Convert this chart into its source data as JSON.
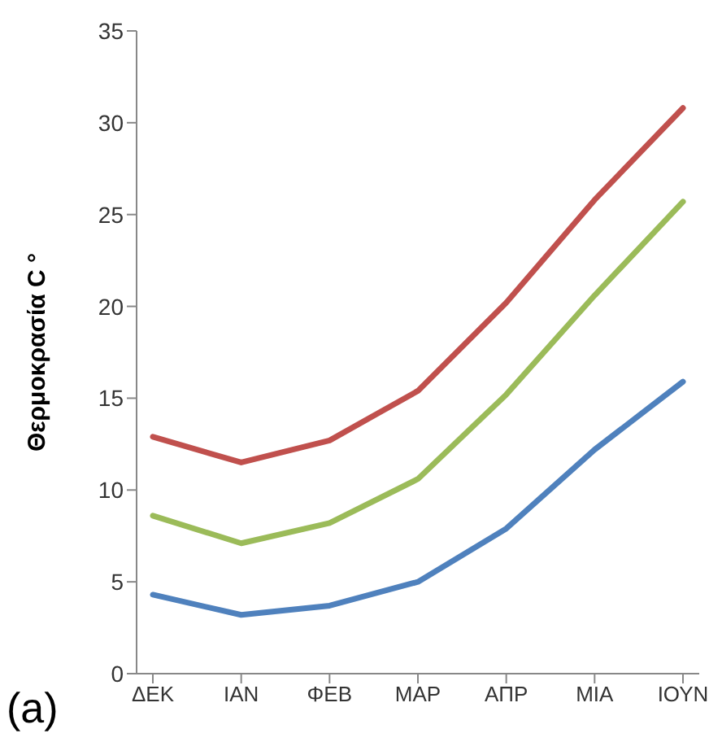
{
  "chart_data": {
    "type": "line",
    "ylabel": "Θερμοκρασία C °",
    "categories": [
      "ΔΕΚ",
      "ΙΑΝ",
      "ΦΕΒ",
      "ΜΑΡ",
      "ΑΠΡ",
      "ΜΙΑ",
      "ΙΟΥΝ"
    ],
    "series": [
      {
        "color": "#c0504d",
        "values": [
          12.9,
          11.5,
          12.7,
          15.4,
          20.2,
          25.8,
          30.8
        ]
      },
      {
        "color": "#9bbb59",
        "values": [
          8.6,
          7.1,
          8.2,
          10.6,
          15.2,
          20.6,
          25.7
        ]
      },
      {
        "color": "#4f81bd",
        "values": [
          4.3,
          3.2,
          3.7,
          5.0,
          7.9,
          12.2,
          15.9
        ]
      }
    ],
    "ylim": [
      0,
      35
    ],
    "yticks": [
      0,
      5,
      10,
      15,
      20,
      25,
      30,
      35
    ],
    "grid": false,
    "legend": false,
    "marker": "none",
    "line_style": "solid",
    "annotations": [
      "(a)"
    ]
  }
}
